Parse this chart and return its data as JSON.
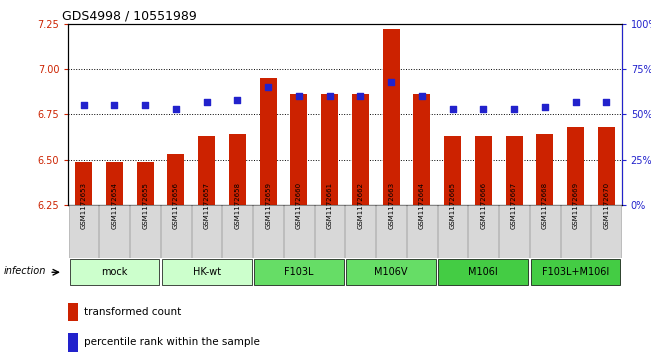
{
  "title": "GDS4998 / 10551989",
  "samples": [
    "GSM1172653",
    "GSM1172654",
    "GSM1172655",
    "GSM1172656",
    "GSM1172657",
    "GSM1172658",
    "GSM1172659",
    "GSM1172660",
    "GSM1172661",
    "GSM1172662",
    "GSM1172663",
    "GSM1172664",
    "GSM1172665",
    "GSM1172666",
    "GSM1172667",
    "GSM1172668",
    "GSM1172669",
    "GSM1172670"
  ],
  "red_values": [
    6.49,
    6.49,
    6.49,
    6.53,
    6.63,
    6.64,
    6.95,
    6.86,
    6.86,
    6.86,
    7.22,
    6.86,
    6.63,
    6.63,
    6.63,
    6.64,
    6.68,
    6.68
  ],
  "blue_values": [
    55,
    55,
    55,
    53,
    57,
    58,
    65,
    60,
    60,
    60,
    68,
    60,
    53,
    53,
    53,
    54,
    57,
    57
  ],
  "ylim_left": [
    6.25,
    7.25
  ],
  "ylim_right": [
    0,
    100
  ],
  "yticks_left": [
    6.25,
    6.5,
    6.75,
    7.0,
    7.25
  ],
  "yticks_right": [
    0,
    25,
    50,
    75,
    100
  ],
  "ytick_labels_right": [
    "0%",
    "25%",
    "50%",
    "75%",
    "100%"
  ],
  "hlines": [
    6.5,
    6.75,
    7.0
  ],
  "groups": [
    {
      "label": "mock",
      "start": 0,
      "end": 3,
      "color": "#ccffcc"
    },
    {
      "label": "HK-wt",
      "start": 3,
      "end": 6,
      "color": "#ccffcc"
    },
    {
      "label": "F103L",
      "start": 6,
      "end": 9,
      "color": "#66dd66"
    },
    {
      "label": "M106V",
      "start": 9,
      "end": 12,
      "color": "#66dd66"
    },
    {
      "label": "M106I",
      "start": 12,
      "end": 15,
      "color": "#44cc44"
    },
    {
      "label": "F103L+M106I",
      "start": 15,
      "end": 18,
      "color": "#44cc44"
    }
  ],
  "bar_color": "#cc2200",
  "dot_color": "#2222cc",
  "bar_width": 0.55,
  "infection_label": "infection",
  "legend1": "transformed count",
  "legend2": "percentile rank within the sample"
}
